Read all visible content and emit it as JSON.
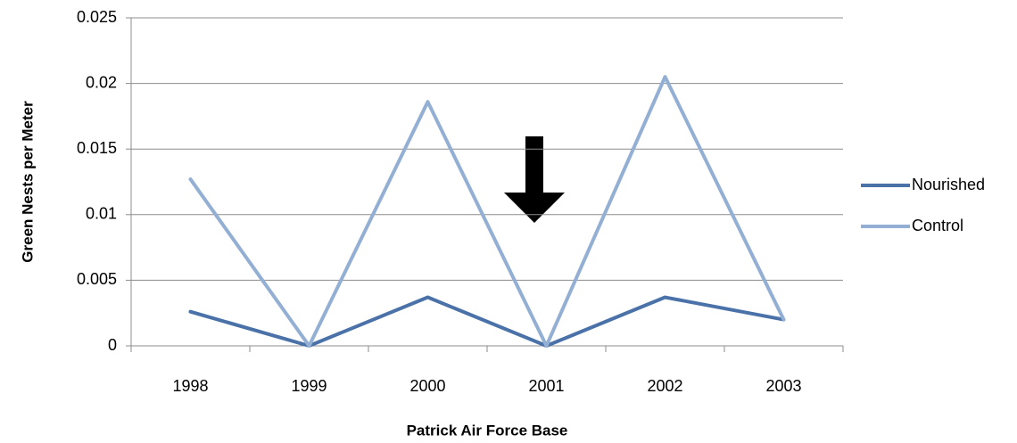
{
  "chart_data": {
    "type": "line",
    "x_label": "Patrick Air Force Base",
    "y_label": "Green Nests per Meter",
    "categories": [
      "1998",
      "1999",
      "2000",
      "2001",
      "2002",
      "2003"
    ],
    "series": [
      {
        "name": "Nourished",
        "color": "#4a72a8",
        "values": [
          0.0026,
          0,
          0.0037,
          0,
          0.0037,
          0.002
        ]
      },
      {
        "name": "Control",
        "color": "#94afd4",
        "values": [
          0.0127,
          0,
          0.0186,
          0,
          0.0205,
          0.002
        ]
      }
    ],
    "ylim": [
      0,
      0.025
    ],
    "yticks": [
      0,
      0.005,
      0.01,
      0.015,
      0.02,
      0.025
    ],
    "grid": true,
    "legend": "right"
  }
}
